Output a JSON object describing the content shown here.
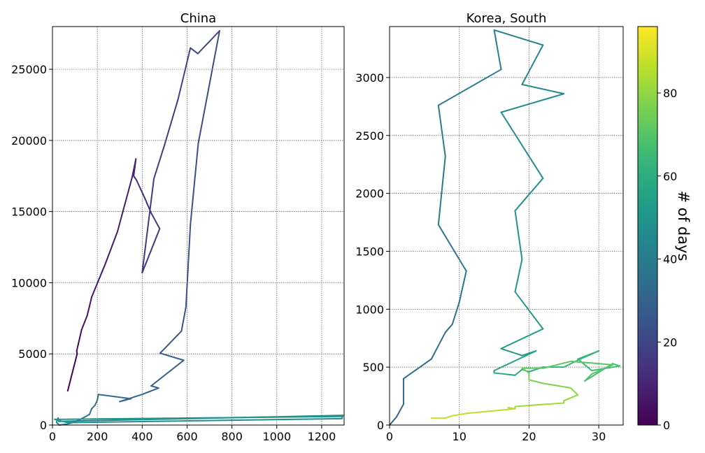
{
  "chart_data": [
    {
      "type": "line",
      "title": "China",
      "xlim": [
        0,
        1300
      ],
      "ylim": [
        0,
        28000
      ],
      "xticks": [
        0,
        200,
        400,
        600,
        800,
        1000,
        1200
      ],
      "yticks": [
        0,
        5000,
        10000,
        15000,
        20000,
        25000
      ],
      "grid": true,
      "color_encoding": "day index",
      "points": [
        [
          68,
          2400
        ],
        [
          110,
          5000
        ],
        [
          108,
          5200
        ],
        [
          130,
          6700
        ],
        [
          155,
          7700
        ],
        [
          175,
          9000
        ],
        [
          235,
          11300
        ],
        [
          290,
          13600
        ],
        [
          355,
          17400
        ],
        [
          372,
          18700
        ],
        [
          362,
          17500
        ],
        [
          375,
          17200
        ],
        [
          410,
          16000
        ],
        [
          440,
          14900
        ],
        [
          478,
          13800
        ],
        [
          400,
          10700
        ],
        [
          452,
          17300
        ],
        [
          500,
          19700
        ],
        [
          560,
          22900
        ],
        [
          615,
          26500
        ],
        [
          648,
          26100
        ],
        [
          745,
          27700
        ],
        [
          650,
          19800
        ],
        [
          615,
          14100
        ],
        [
          595,
          8300
        ],
        [
          575,
          6600
        ],
        [
          480,
          5050
        ],
        [
          585,
          4550
        ],
        [
          440,
          2750
        ],
        [
          473,
          2600
        ],
        [
          400,
          2150
        ],
        [
          300,
          1650
        ],
        [
          350,
          1850
        ],
        [
          205,
          2150
        ],
        [
          200,
          1750
        ],
        [
          190,
          1400
        ],
        [
          175,
          1150
        ],
        [
          165,
          750
        ],
        [
          125,
          400
        ],
        [
          85,
          150
        ],
        [
          62,
          60
        ],
        [
          30,
          0
        ],
        [
          18,
          200
        ],
        [
          25,
          500
        ],
        [
          28,
          260
        ],
        [
          1295,
          680
        ],
        [
          1290,
          450
        ],
        [
          80,
          170
        ],
        [
          60,
          200
        ],
        [
          10,
          400
        ],
        [
          1290,
          600
        ]
      ]
    },
    {
      "type": "line",
      "title": "Korea, South",
      "xlim": [
        0,
        33.5
      ],
      "ylim": [
        0,
        3440
      ],
      "xticks": [
        0,
        10,
        20,
        30
      ],
      "yticks": [
        0,
        500,
        1000,
        1500,
        2000,
        2500,
        3000
      ],
      "grid": true,
      "color_encoding": "day index",
      "points": [
        [
          0,
          0
        ],
        [
          1,
          70
        ],
        [
          2,
          180
        ],
        [
          2,
          400
        ],
        [
          6,
          570
        ],
        [
          8,
          800
        ],
        [
          9,
          870
        ],
        [
          10,
          1060
        ],
        [
          11,
          1330
        ],
        [
          7,
          1730
        ],
        [
          8,
          2320
        ],
        [
          7,
          2760
        ],
        [
          16,
          3070
        ],
        [
          15,
          3410
        ],
        [
          22,
          3280
        ],
        [
          19,
          2940
        ],
        [
          25,
          2860
        ],
        [
          16,
          2700
        ],
        [
          22,
          2130
        ],
        [
          18,
          1850
        ],
        [
          19,
          1430
        ],
        [
          18,
          1150
        ],
        [
          22,
          830
        ],
        [
          16,
          660
        ],
        [
          19,
          600
        ],
        [
          21,
          640
        ],
        [
          15,
          470
        ],
        [
          15,
          450
        ],
        [
          18,
          430
        ],
        [
          19,
          480
        ],
        [
          20,
          460
        ],
        [
          22,
          500
        ],
        [
          25,
          500
        ],
        [
          27,
          560
        ],
        [
          30,
          640
        ],
        [
          27,
          570
        ],
        [
          29,
          470
        ],
        [
          33,
          510
        ],
        [
          32,
          530
        ],
        [
          28,
          380
        ],
        [
          29,
          440
        ],
        [
          32,
          520
        ],
        [
          26,
          550
        ],
        [
          22,
          490
        ],
        [
          19,
          490
        ],
        [
          20,
          450
        ],
        [
          20,
          390
        ],
        [
          22,
          360
        ],
        [
          24,
          340
        ],
        [
          26,
          320
        ],
        [
          27,
          260
        ],
        [
          25,
          210
        ],
        [
          25,
          190
        ],
        [
          18,
          160
        ],
        [
          18,
          140
        ],
        [
          17,
          150
        ],
        [
          18,
          140
        ],
        [
          11,
          100
        ],
        [
          9,
          80
        ],
        [
          8,
          60
        ],
        [
          6,
          60
        ]
      ]
    }
  ],
  "colorbar": {
    "label": "# of days",
    "range": [
      0,
      96
    ],
    "ticks": [
      0,
      20,
      40,
      60,
      80
    ],
    "colormap": "viridis"
  }
}
